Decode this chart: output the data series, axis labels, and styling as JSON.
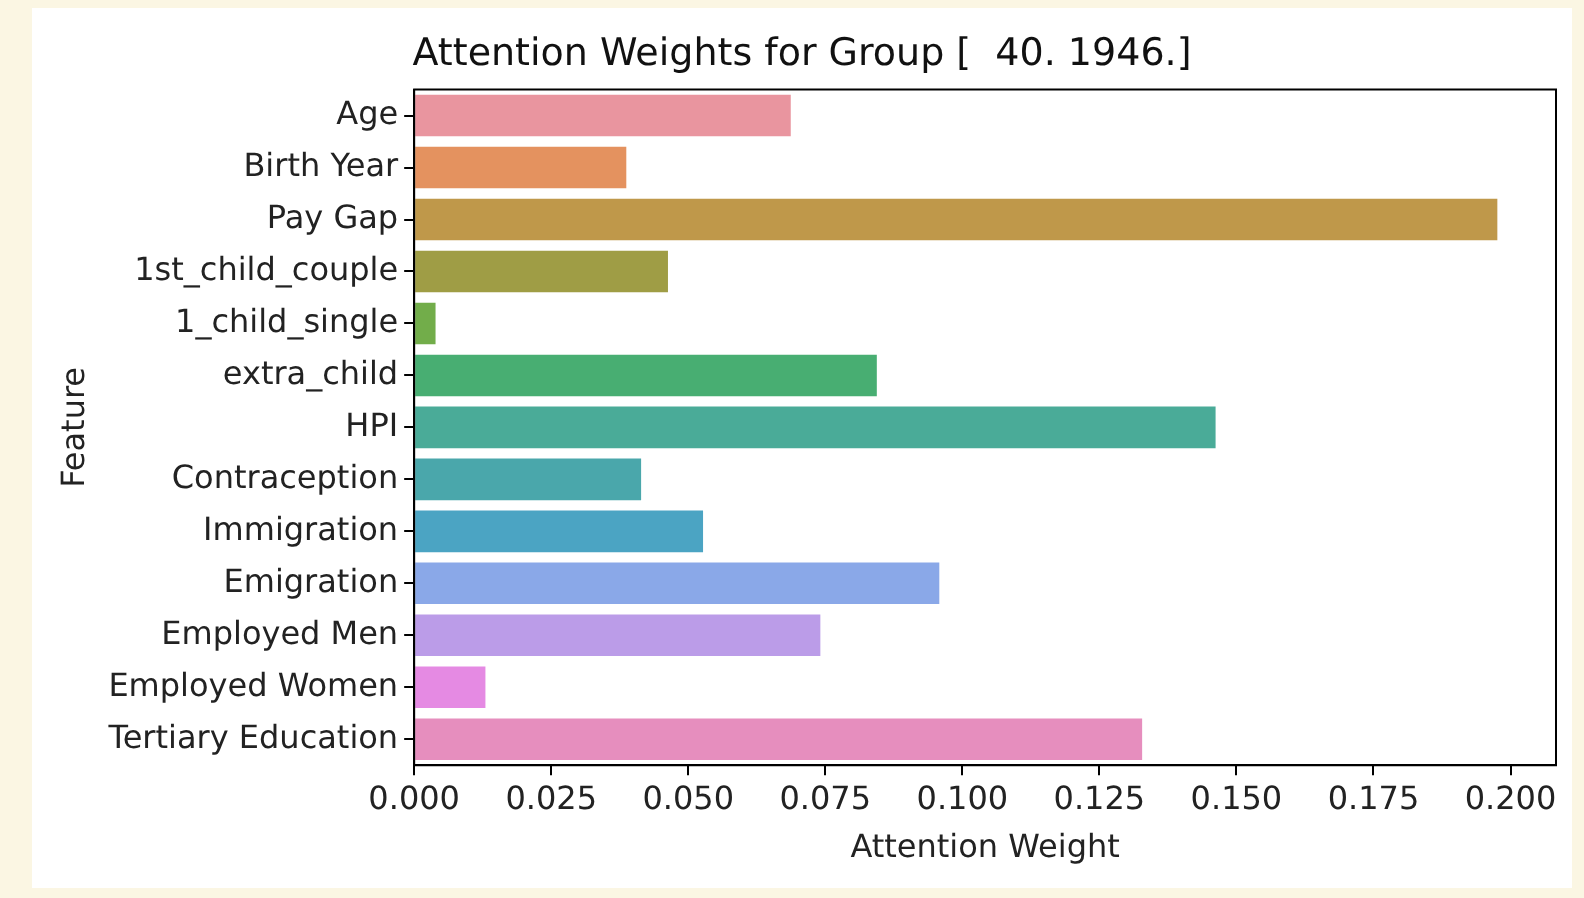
{
  "chart_data": {
    "type": "bar",
    "orientation": "horizontal",
    "title": "Attention Weights for Group [  40. 1946.]",
    "xlabel": "Attention Weight",
    "ylabel": "Feature",
    "categories": [
      "Age",
      "Birth Year",
      "Pay Gap",
      "1st_child_couple",
      "1_child_single",
      "extra_child",
      "HPI",
      "Contraception",
      "Immigration",
      "Emigration",
      "Employed Men",
      "Employed Women",
      "Tertiary Education"
    ],
    "values": [
      0.0687,
      0.0387,
      0.1976,
      0.0463,
      0.0039,
      0.0844,
      0.1462,
      0.0414,
      0.0527,
      0.0958,
      0.0741,
      0.013,
      0.1328
    ],
    "colors": [
      "#e9959f",
      "#e4925f",
      "#bf984a",
      "#9f9d45",
      "#72ad4a",
      "#48ae72",
      "#4aab98",
      "#4aa7ab",
      "#4ba4c3",
      "#8aa8e8",
      "#bb9ce8",
      "#e58ae3",
      "#e68ebe"
    ],
    "xlim": [
      0,
      0.2083
    ],
    "xticks": [
      {
        "value": 0,
        "label": "0.000"
      },
      {
        "value": 0.025,
        "label": "0.025"
      },
      {
        "value": 0.05,
        "label": "0.050"
      },
      {
        "value": 0.075,
        "label": "0.075"
      },
      {
        "value": 0.1,
        "label": "0.100"
      },
      {
        "value": 0.125,
        "label": "0.125"
      },
      {
        "value": 0.15,
        "label": "0.150"
      },
      {
        "value": 0.175,
        "label": "0.175"
      },
      {
        "value": 0.2,
        "label": "0.200"
      }
    ],
    "grid": false,
    "legend": false
  }
}
